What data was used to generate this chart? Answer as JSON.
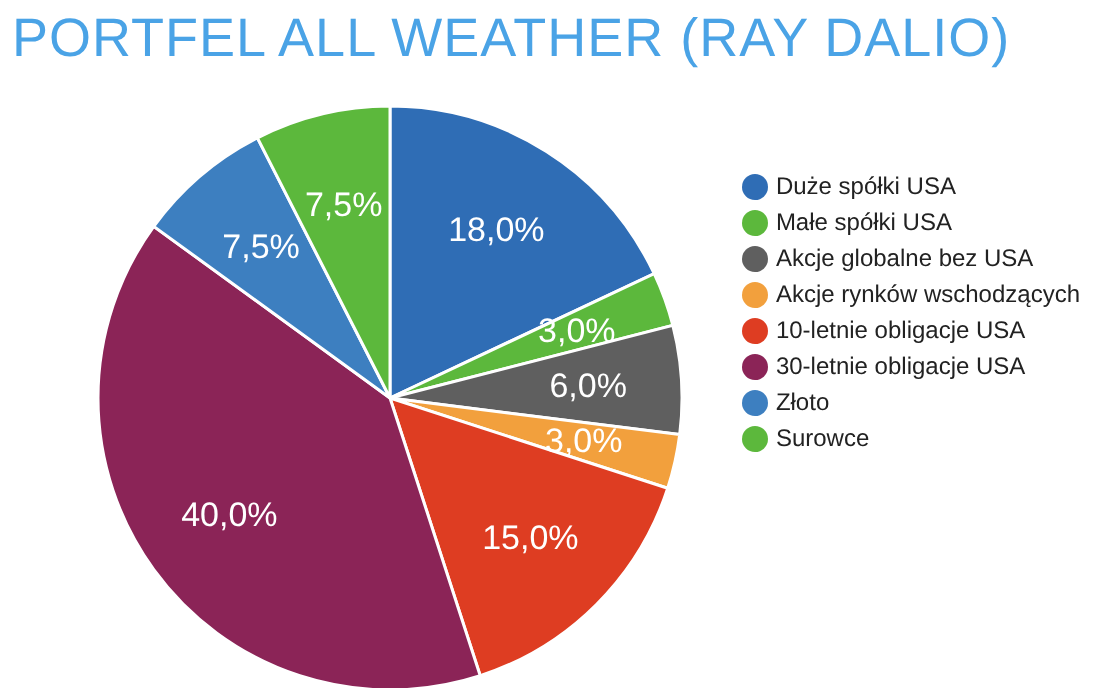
{
  "chart_data": {
    "type": "pie",
    "title": "PORTFEL ALL WEATHER (RAY DALIO)",
    "categories": [
      "Duże spółki USA",
      "Małe spółki USA",
      "Akcje globalne bez USA",
      "Akcje rynków wschodzących",
      "10-letnie obligacje USA",
      "30-letnie obligacje USA",
      "Złoto",
      "Surowce"
    ],
    "values": [
      18,
      3,
      6,
      3,
      15,
      40,
      7.5,
      7.5
    ],
    "value_labels": [
      "18,0%",
      "3,0%",
      "6,0%",
      "3,0%",
      "15,0%",
      "40,0%",
      "7,5%",
      "7,5%"
    ],
    "colors": [
      "#2f6db5",
      "#5cb83c",
      "#5f5f5f",
      "#f2a03d",
      "#de3d22",
      "#8b2457",
      "#3d7fc0",
      "#5cb83c"
    ],
    "legend": "right"
  }
}
